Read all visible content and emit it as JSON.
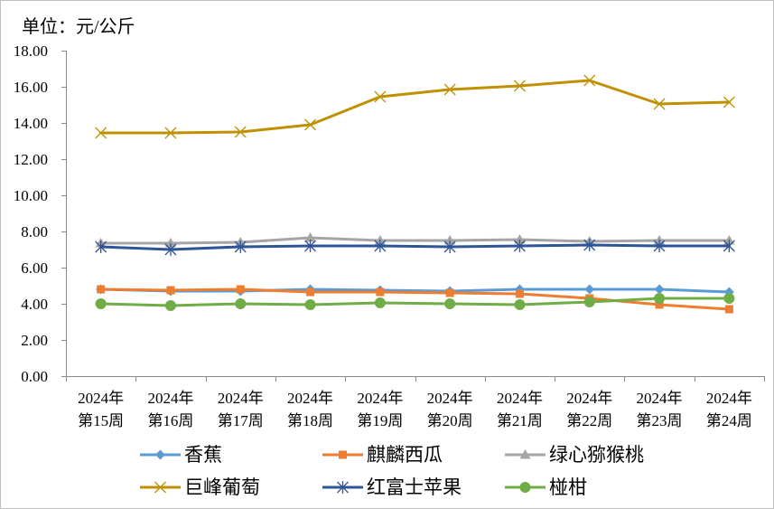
{
  "chart_data": {
    "type": "line",
    "unit_label": "单位：元/公斤",
    "categories": [
      "2024年\n第15周",
      "2024年\n第16周",
      "2024年\n第17周",
      "2024年\n第18周",
      "2024年\n第19周",
      "2024年\n第20周",
      "2024年\n第21周",
      "2024年\n第22周",
      "2024年\n第23周",
      "2024年\n第24周"
    ],
    "ylim": [
      0,
      18
    ],
    "yticks": [
      0,
      2,
      4,
      6,
      8,
      10,
      12,
      14,
      16,
      18
    ],
    "ytick_labels": [
      "0.00",
      "2.00",
      "4.00",
      "6.00",
      "8.00",
      "10.00",
      "12.00",
      "14.00",
      "16.00",
      "18.00"
    ],
    "grid": false,
    "legend_position": "bottom",
    "series": [
      {
        "name": "香蕉",
        "color": "#5B9BD5",
        "marker": "diamond",
        "values": [
          4.8,
          4.7,
          4.7,
          4.8,
          4.75,
          4.7,
          4.8,
          4.8,
          4.8,
          4.65
        ]
      },
      {
        "name": "麒麟西瓜",
        "color": "#ED7D31",
        "marker": "square",
        "values": [
          4.8,
          4.75,
          4.8,
          4.65,
          4.65,
          4.6,
          4.55,
          4.3,
          3.95,
          3.7
        ]
      },
      {
        "name": "绿心猕猴桃",
        "color": "#A5A5A5",
        "marker": "triangle",
        "values": [
          7.35,
          7.35,
          7.4,
          7.65,
          7.5,
          7.5,
          7.55,
          7.45,
          7.5,
          7.5
        ]
      },
      {
        "name": "巨峰葡萄",
        "color": "#BF9000",
        "marker": "x",
        "values": [
          13.45,
          13.45,
          13.5,
          13.9,
          15.45,
          15.85,
          16.05,
          16.35,
          15.05,
          15.15
        ]
      },
      {
        "name": "红富士苹果",
        "color": "#2F5597",
        "marker": "asterisk",
        "values": [
          7.15,
          7.0,
          7.15,
          7.2,
          7.2,
          7.15,
          7.2,
          7.25,
          7.2,
          7.2
        ]
      },
      {
        "name": "椪柑",
        "color": "#70AD47",
        "marker": "circle",
        "values": [
          4.0,
          3.9,
          4.0,
          3.95,
          4.05,
          4.0,
          3.95,
          4.1,
          4.3,
          4.3
        ]
      }
    ]
  }
}
